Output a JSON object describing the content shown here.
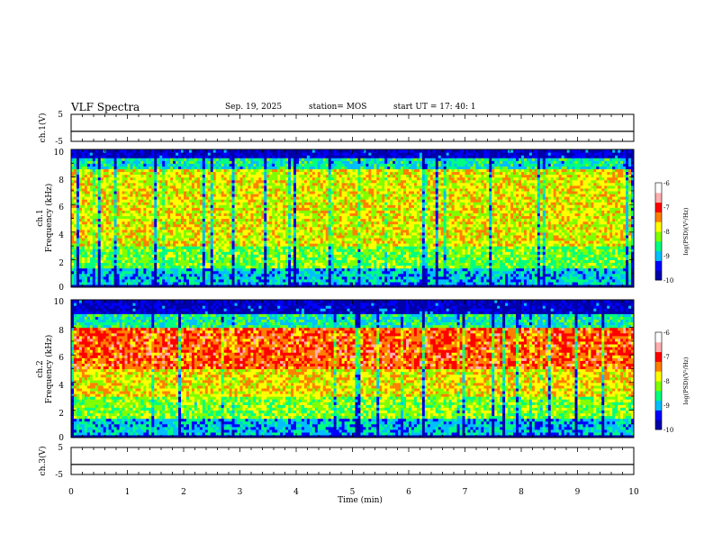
{
  "header": {
    "title": "VLF Spectra",
    "date": "Sep. 19, 2025",
    "station": "station= MOS",
    "start": "start  UT =   17: 40: 1"
  },
  "chart_data": [
    {
      "type": "line",
      "panel": "ch1-waveform",
      "ylabel": "ch.1(V)",
      "ylim": [
        -5,
        5
      ],
      "ytick_labels": [
        "5",
        "-5"
      ],
      "series": [
        {
          "values": [
            -1.3,
            -1.3,
            -1.3,
            -1.3,
            -1.3,
            -1.3,
            -1.3,
            -1.3,
            -1.3,
            -1.3,
            -1.3
          ]
        }
      ]
    },
    {
      "type": "heatmap",
      "panel": "ch1-spectrogram",
      "ylabel": [
        "ch.1",
        "Frequency (kHz)"
      ],
      "ylim": [
        0,
        10
      ],
      "ytick_labels": [
        "0",
        "2",
        "4",
        "6",
        "8",
        "10"
      ],
      "colorbar": {
        "label": "log(PSD)(V²/Hz)",
        "range": [
          -10,
          -6
        ],
        "tick_labels": [
          "-6",
          "-7",
          "-8",
          "-9",
          "-10"
        ]
      }
    },
    {
      "type": "heatmap",
      "panel": "ch2-spectrogram",
      "ylabel": [
        "ch.2",
        "Frequency (kHz)"
      ],
      "ylim": [
        0,
        10
      ],
      "ytick_labels": [
        "0",
        "2",
        "4",
        "6",
        "8",
        "10"
      ],
      "colorbar": {
        "label": "log(PSD)(V²/Hz)",
        "range": [
          -10,
          -6
        ],
        "tick_labels": [
          "-6",
          "-7",
          "-8",
          "-9",
          "-10"
        ]
      }
    },
    {
      "type": "line",
      "panel": "ch3-waveform",
      "ylabel": "ch.3(V)",
      "ylim": [
        -5,
        5
      ],
      "ytick_labels": [
        "5",
        "-5"
      ],
      "series": [
        {
          "values": [
            -1.3,
            -1.3,
            -1.3,
            -1.3,
            -1.3,
            -1.3,
            -1.3,
            -1.3,
            -1.3,
            -1.3,
            -1.3
          ]
        }
      ]
    }
  ],
  "x_axis": {
    "label": "Time (min)",
    "range": [
      0,
      10
    ],
    "tick_labels": [
      "0",
      "1",
      "2",
      "3",
      "4",
      "5",
      "6",
      "7",
      "8",
      "9",
      "10"
    ]
  },
  "colors": {
    "palette": [
      "#0000aa",
      "#0000ff",
      "#00bfff",
      "#00ff80",
      "#80ff00",
      "#ffff00",
      "#ff8000",
      "#ff0000",
      "#ffb0b0",
      "#ffffff"
    ]
  }
}
